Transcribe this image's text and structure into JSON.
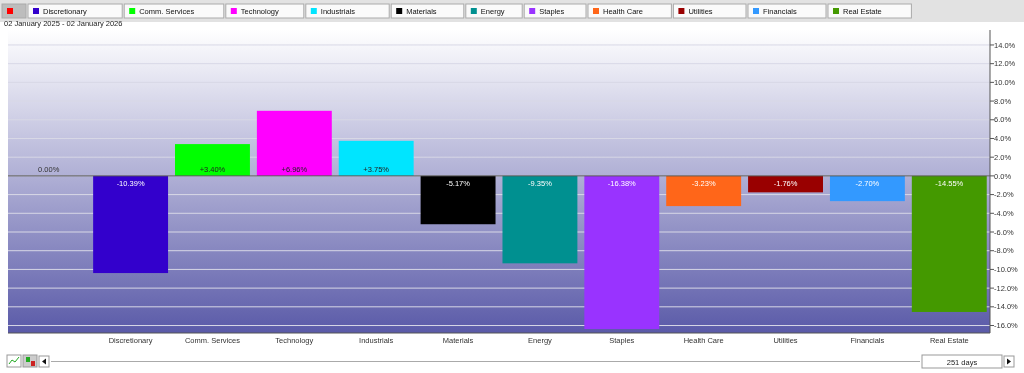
{
  "chart_data": {
    "type": "bar",
    "subtitle": "02 January 2025 - 02 January 2026",
    "categories": [
      null,
      "Discretionary",
      "Comm. Services",
      "Technology",
      "Industrials",
      "Materials",
      "Energy",
      "Staples",
      "Health Care",
      "Utilities",
      "Financials",
      "Real Estate"
    ],
    "values": [
      0.0,
      -10.39,
      3.4,
      6.96,
      3.75,
      -5.17,
      -9.35,
      -16.38,
      -3.23,
      -1.76,
      -2.7,
      -14.55
    ],
    "colors": [
      "#ff0000",
      "#3300cc",
      "#00ff00",
      "#ff00ff",
      "#00e5ff",
      "#000000",
      "#009090",
      "#9933ff",
      "#ff6619",
      "#990000",
      "#3399ff",
      "#449900"
    ],
    "value_labels": [
      "0.00%",
      "-10.39%",
      "+3.40%",
      "+6.96%",
      "+3.75%",
      "-5.17%",
      "-9.35%",
      "-16.38%",
      "-3.23%",
      "-1.76%",
      "-2.70%",
      "-14.55%"
    ],
    "ylim": [
      -16.8,
      15.6
    ],
    "yticks": [
      {
        "value": -16,
        "label": "-16.0%"
      },
      {
        "value": -14,
        "label": "-14.0%"
      },
      {
        "value": -12,
        "label": "-12.0%"
      },
      {
        "value": -10,
        "label": "-10.0%"
      },
      {
        "value": -8,
        "label": "-8.0%"
      },
      {
        "value": -6,
        "label": "-6.0%"
      },
      {
        "value": -4,
        "label": "-4.0%"
      },
      {
        "value": -2,
        "label": "-2.0%"
      },
      {
        "value": 0,
        "label": "0.0%"
      },
      {
        "value": 2,
        "label": "2.0%"
      },
      {
        "value": 4,
        "label": "4.0%"
      },
      {
        "value": 6,
        "label": "6.0%"
      },
      {
        "value": 8,
        "label": "8.0%"
      },
      {
        "value": 10,
        "label": "10.0%"
      },
      {
        "value": 12,
        "label": "12.0%"
      },
      {
        "value": 14,
        "label": "14.0%"
      }
    ],
    "grid": "y",
    "annotations": [
      "251 days"
    ]
  }
}
